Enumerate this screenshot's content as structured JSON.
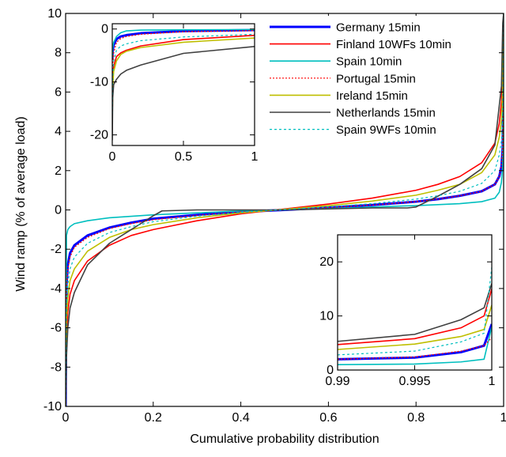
{
  "chart_data": {
    "type": "line",
    "title": "",
    "xlabel": "Cumulative probability distribution",
    "ylabel": "Wind ramp (% of average load)",
    "xlim": [
      0,
      1
    ],
    "ylim": [
      -10,
      10
    ],
    "xticks": [
      0,
      0.2,
      0.4,
      0.6,
      0.8,
      1
    ],
    "xtick_labels": [
      "0",
      "0.2",
      "0.4",
      "0.6",
      "0.8",
      "1"
    ],
    "yticks": [
      -10,
      -8,
      -6,
      -4,
      -2,
      0,
      2,
      4,
      6,
      8,
      10
    ],
    "ytick_labels": [
      "-10",
      "-8",
      "-6",
      "-4",
      "-2",
      "0",
      "2",
      "4",
      "6",
      "8",
      "10"
    ],
    "grid": false,
    "legend_position": "top-right",
    "series": [
      {
        "name": "Germany 15min",
        "color": "#0000ff",
        "dash": "solid",
        "width": 3,
        "x": [
          0,
          0.002,
          0.005,
          0.01,
          0.02,
          0.05,
          0.1,
          0.15,
          0.2,
          0.3,
          0.4,
          0.5,
          0.6,
          0.7,
          0.8,
          0.85,
          0.9,
          0.95,
          0.98,
          0.99,
          0.995,
          0.998,
          1
        ],
        "y": [
          -10,
          -3.8,
          -2.8,
          -2.2,
          -1.8,
          -1.3,
          -0.9,
          -0.65,
          -0.45,
          -0.25,
          -0.1,
          0,
          0.12,
          0.25,
          0.42,
          0.55,
          0.72,
          0.95,
          1.3,
          1.7,
          2.2,
          3.2,
          9
        ]
      },
      {
        "name": "Finland 10WFs 10min",
        "color": "#ff0000",
        "dash": "solid",
        "width": 1.6,
        "x": [
          0,
          0.002,
          0.005,
          0.01,
          0.02,
          0.05,
          0.1,
          0.15,
          0.2,
          0.3,
          0.4,
          0.5,
          0.6,
          0.7,
          0.8,
          0.85,
          0.9,
          0.95,
          0.98,
          0.99,
          0.995,
          0.998,
          1
        ],
        "y": [
          -10,
          -6.5,
          -5.2,
          -4.3,
          -3.6,
          -2.6,
          -1.8,
          -1.3,
          -1,
          -0.55,
          -0.2,
          0.05,
          0.3,
          0.6,
          1.0,
          1.3,
          1.7,
          2.4,
          3.4,
          4.4,
          5.5,
          7.5,
          10
        ]
      },
      {
        "name": "Spain 10min",
        "color": "#00bfbf",
        "dash": "solid",
        "width": 1.6,
        "x": [
          0,
          0.002,
          0.005,
          0.01,
          0.02,
          0.05,
          0.1,
          0.2,
          0.3,
          0.4,
          0.5,
          0.6,
          0.7,
          0.8,
          0.9,
          0.95,
          0.98,
          0.99,
          0.995,
          0.998,
          1
        ],
        "y": [
          -10,
          -1.3,
          -1.0,
          -0.85,
          -0.7,
          -0.55,
          -0.4,
          -0.25,
          -0.15,
          -0.05,
          0,
          0.07,
          0.15,
          0.22,
          0.32,
          0.42,
          0.6,
          0.9,
          1.4,
          2.2,
          8
        ]
      },
      {
        "name": "Portugal 15min",
        "color": "#ff0000",
        "dash": "2,2",
        "width": 1.2,
        "x": [
          0,
          0.002,
          0.005,
          0.01,
          0.02,
          0.05,
          0.1,
          0.15,
          0.2,
          0.3,
          0.4,
          0.5,
          0.6,
          0.7,
          0.8,
          0.85,
          0.9,
          0.95,
          0.98,
          0.99,
          0.995,
          0.998,
          1
        ],
        "y": [
          -10,
          -4.0,
          -3.0,
          -2.4,
          -1.9,
          -1.4,
          -0.95,
          -0.7,
          -0.5,
          -0.28,
          -0.1,
          0,
          0.12,
          0.25,
          0.42,
          0.55,
          0.72,
          0.95,
          1.3,
          1.7,
          2.2,
          3.2,
          9
        ]
      },
      {
        "name": "Ireland 15min",
        "color": "#bfbf00",
        "dash": "solid",
        "width": 1.6,
        "x": [
          0,
          0.002,
          0.005,
          0.01,
          0.02,
          0.05,
          0.1,
          0.15,
          0.2,
          0.3,
          0.4,
          0.5,
          0.6,
          0.7,
          0.8,
          0.85,
          0.9,
          0.95,
          0.98,
          0.99,
          0.995,
          0.998,
          1
        ],
        "y": [
          -10,
          -5.5,
          -4.5,
          -3.6,
          -3.0,
          -2.1,
          -1.4,
          -1.0,
          -0.75,
          -0.4,
          -0.15,
          0.03,
          0.22,
          0.45,
          0.75,
          1.0,
          1.3,
          1.9,
          2.8,
          3.7,
          4.6,
          6.0,
          10
        ]
      },
      {
        "name": "Netherlands 15min",
        "color": "#404040",
        "dash": "solid",
        "width": 1.6,
        "x": [
          0,
          0.002,
          0.005,
          0.01,
          0.02,
          0.05,
          0.1,
          0.15,
          0.2,
          0.22,
          0.3,
          0.4,
          0.5,
          0.6,
          0.7,
          0.78,
          0.8,
          0.85,
          0.9,
          0.95,
          0.98,
          0.99,
          0.995,
          0.998,
          1
        ],
        "y": [
          -10,
          -7.5,
          -6.0,
          -5.0,
          -4.2,
          -2.8,
          -1.7,
          -1.0,
          -0.3,
          -0.05,
          0,
          0,
          0,
          0.05,
          0.1,
          0.1,
          0.15,
          0.7,
          1.3,
          2.1,
          3.3,
          5.3,
          6.3,
          9.5,
          10
        ]
      },
      {
        "name": "Spain 9WFs 10min",
        "color": "#00bfbf",
        "dash": "3,3",
        "width": 1.2,
        "x": [
          0,
          0.002,
          0.005,
          0.01,
          0.02,
          0.05,
          0.1,
          0.15,
          0.2,
          0.3,
          0.4,
          0.5,
          0.6,
          0.7,
          0.8,
          0.85,
          0.9,
          0.95,
          0.98,
          0.99,
          0.995,
          0.998,
          1
        ],
        "y": [
          -10,
          -4.8,
          -3.8,
          -3.0,
          -2.4,
          -1.7,
          -1.15,
          -0.85,
          -0.6,
          -0.32,
          -0.12,
          0.02,
          0.16,
          0.32,
          0.55,
          0.72,
          0.95,
          1.35,
          2.0,
          2.8,
          3.5,
          5.0,
          10
        ]
      }
    ],
    "insets": [
      {
        "position": "top-left",
        "xlim": [
          0,
          1
        ],
        "ylim": [
          -22,
          1
        ],
        "xticks": [
          0,
          0.5,
          1
        ],
        "xtick_labels": [
          "0",
          "0.5",
          "1"
        ],
        "yticks": [
          0,
          -10,
          -20
        ],
        "ytick_labels": [
          "0",
          "-10",
          "-20"
        ],
        "series": [
          {
            "ref": 0,
            "x": [
              0,
              0.003,
              0.01,
              0.03,
              0.06,
              0.1,
              0.2,
              0.5,
              1
            ],
            "y": [
              -5.8,
              -4.0,
              -3.0,
              -1.9,
              -1.4,
              -1.15,
              -0.8,
              -0.4,
              -0.2
            ]
          },
          {
            "ref": 1,
            "x": [
              0,
              0.003,
              0.01,
              0.03,
              0.06,
              0.1,
              0.2,
              0.5,
              1
            ],
            "y": [
              -19,
              -10,
              -7,
              -5.2,
              -4.5,
              -4.0,
              -3.2,
              -2.0,
              -1.2
            ]
          },
          {
            "ref": 2,
            "x": [
              0,
              0.003,
              0.01,
              0.03,
              0.06,
              0.1,
              0.2,
              0.5,
              1
            ],
            "y": [
              -5.5,
              -3.5,
              -2.5,
              -1.4,
              -0.7,
              -0.35,
              -0.2,
              -0.15,
              -0.1
            ]
          },
          {
            "ref": 3,
            "x": [
              0,
              0.003,
              0.01,
              0.03,
              0.06,
              0.1,
              0.2,
              0.5,
              1
            ],
            "y": [
              -13,
              -7,
              -4.5,
              -2.5,
              -1.8,
              -1.4,
              -1.0,
              -0.5,
              -0.3
            ]
          },
          {
            "ref": 4,
            "x": [
              0,
              0.003,
              0.01,
              0.03,
              0.06,
              0.1,
              0.2,
              0.5,
              1
            ],
            "y": [
              -18,
              -11,
              -8,
              -6,
              -4.8,
              -4.2,
              -3.5,
              -2.5,
              -1.7
            ]
          },
          {
            "ref": 5,
            "x": [
              0,
              0.003,
              0.01,
              0.03,
              0.06,
              0.1,
              0.2,
              0.5,
              1
            ],
            "y": [
              -21,
              -13,
              -10.5,
              -9.5,
              -8.5,
              -7.8,
              -6.8,
              -4.6,
              -3.3
            ]
          },
          {
            "ref": 6,
            "x": [
              0,
              0.003,
              0.01,
              0.03,
              0.06,
              0.1,
              0.2,
              0.5,
              1
            ],
            "y": [
              -16,
              -9,
              -6,
              -4,
              -3.2,
              -2.8,
              -2.2,
              -1.5,
              -1.0
            ]
          }
        ]
      },
      {
        "position": "bottom-right",
        "xlim": [
          0.99,
          1
        ],
        "ylim": [
          0,
          25
        ],
        "xticks": [
          0.99,
          0.995,
          1
        ],
        "xtick_labels": [
          "0.99",
          "0.995",
          "1"
        ],
        "yticks": [
          0,
          10,
          20
        ],
        "ytick_labels": [
          "0",
          "10",
          "20"
        ],
        "series": [
          {
            "ref": 0,
            "x": [
              0.99,
              0.995,
              0.998,
              0.9995,
              1
            ],
            "y": [
              2.0,
              2.3,
              3.3,
              4.5,
              8.5
            ]
          },
          {
            "ref": 1,
            "x": [
              0.99,
              0.995,
              0.998,
              0.9995,
              1
            ],
            "y": [
              4.7,
              5.8,
              7.8,
              10,
              15
            ]
          },
          {
            "ref": 2,
            "x": [
              0.99,
              0.995,
              0.998,
              0.9995,
              1
            ],
            "y": [
              1.0,
              1.1,
              1.5,
              2.0,
              8
            ]
          },
          {
            "ref": 3,
            "x": [
              0.99,
              0.995,
              0.998,
              0.9995,
              1
            ],
            "y": [
              2.0,
              2.4,
              3.5,
              4.5,
              6
            ]
          },
          {
            "ref": 4,
            "x": [
              0.99,
              0.995,
              0.998,
              0.9995,
              1
            ],
            "y": [
              3.8,
              4.8,
              6.2,
              7.5,
              12
            ]
          },
          {
            "ref": 5,
            "x": [
              0.99,
              0.995,
              0.998,
              0.9995,
              1
            ],
            "y": [
              5.3,
              6.6,
              9.3,
              11.5,
              16
            ]
          },
          {
            "ref": 6,
            "x": [
              0.99,
              0.995,
              0.998,
              0.9995,
              1
            ],
            "y": [
              2.8,
              3.5,
              5.2,
              6.8,
              19
            ]
          }
        ]
      }
    ]
  }
}
